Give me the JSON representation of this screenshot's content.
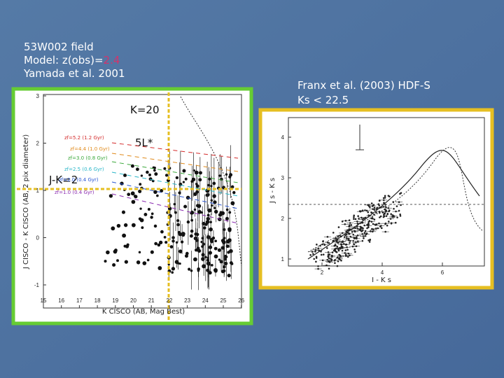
{
  "left_text": {
    "line1": "53W002 field",
    "line2_prefix": "Model: z(obs)=",
    "line2_value": "2.4",
    "line3": "Yamada et al. 2001"
  },
  "right_text": {
    "line1": "Franx et al. (2003) HDF-S",
    "line2": "Ks < 22.5"
  },
  "left_plot": {
    "annotations": [
      "K=20",
      "5L*",
      "J-K=2"
    ],
    "y_axis_label": "J CISCO - K CISCO (AB, 2 pix diameter)",
    "x_axis_label": "K CISCO (AB, Mag Best)",
    "xticks": [
      "15",
      "16",
      "17",
      "18",
      "19",
      "20",
      "21",
      "22",
      "23",
      "24",
      "25",
      "26"
    ],
    "yticks": [
      "3",
      "2",
      "1",
      "0",
      "-1"
    ],
    "legend": [
      "zf=5.2 (1.2 Gyr)",
      "zf=4.4 (1.0 Gyr)",
      "zf=3.0 (0.8 Gyr)",
      "zf=2.5 (0.6 Gyr)",
      "zf=2.0 (0.4 Gyr)",
      "zf=1.0 (0.4 Gyr)"
    ]
  },
  "right_plot": {
    "y_axis_label": "J s - K s",
    "x_axis_label": "I - K s",
    "xticks": [
      "2",
      "4",
      "6"
    ],
    "yticks": [
      "4",
      "3",
      "2",
      "1"
    ]
  }
}
